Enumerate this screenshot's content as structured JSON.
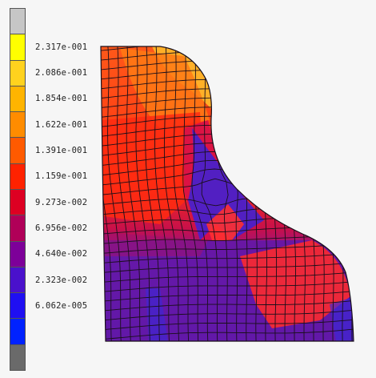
{
  "legend": {
    "colors": [
      "#c6c6c6",
      "#ffff00",
      "#ffd21e",
      "#ffb400",
      "#ff8c00",
      "#ff5a00",
      "#ff2200",
      "#dd0022",
      "#b00058",
      "#7d0099",
      "#4a11cc",
      "#1f0ff2",
      "#0022ff",
      "#6a6a6a"
    ],
    "labels": [
      "2.317e-001",
      "2.086e-001",
      "1.854e-001",
      "1.622e-001",
      "1.391e-001",
      "1.159e-001",
      "9.273e-002",
      "6.956e-002",
      "4.640e-002",
      "2.323e-002",
      "6.062e-005"
    ]
  },
  "mesh": {
    "line_color": "#1a0f1a",
    "fill_regions": [
      {
        "name": "upper-left-orange",
        "color": "#ff5a1a"
      },
      {
        "name": "top-right-yellow",
        "color": "#ffb028"
      },
      {
        "name": "mid-red",
        "color": "#ff3311"
      },
      {
        "name": "diagonal-crimson",
        "color": "#d81040"
      },
      {
        "name": "blue-channel",
        "color": "#3322dd"
      },
      {
        "name": "bottom-purple",
        "color": "#6a1aa8"
      },
      {
        "name": "right-red-lobe",
        "color": "#ff2a2a"
      }
    ]
  }
}
